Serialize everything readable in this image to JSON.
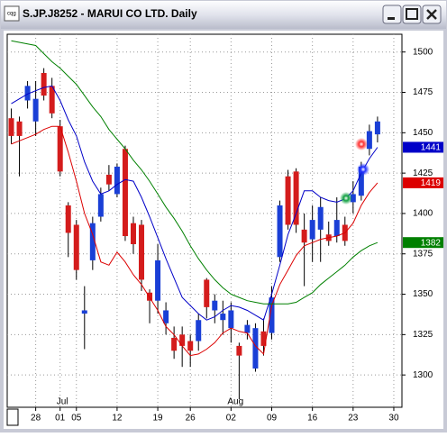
{
  "chart_data": {
    "type": "candlestick",
    "title": "S.JP.J8252 - MARUI CO LTD. Daily",
    "x": [
      0,
      1,
      2,
      3,
      4,
      5,
      6,
      7,
      8,
      9,
      10,
      11,
      12,
      13,
      14,
      15,
      16,
      17,
      18,
      19,
      20,
      21,
      22,
      23,
      24,
      25,
      26,
      27,
      28,
      29,
      30,
      31,
      32,
      33,
      34,
      35,
      36,
      37,
      38,
      39,
      40,
      41,
      42,
      43,
      44,
      45
    ],
    "open": [
      1459,
      1457,
      1470,
      1457,
      1487,
      1479,
      1454,
      1405,
      1393,
      1338,
      1371,
      1398,
      1424,
      1412,
      1440,
      1394,
      1393,
      1351,
      1346,
      1332,
      1323,
      1325,
      1321,
      1321,
      1359,
      1340,
      1334,
      1329,
      1318,
      1326,
      1304,
      1327,
      1326,
      1373,
      1423,
      1426,
      1390,
      1384,
      1390,
      1387,
      1386,
      1393,
      1407,
      1411,
      1440,
      1449
    ],
    "high": [
      1465,
      1460,
      1482,
      1482,
      1490,
      1484,
      1458,
      1407,
      1396,
      1355,
      1398,
      1416,
      1430,
      1431,
      1442,
      1398,
      1396,
      1353,
      1381,
      1345,
      1330,
      1330,
      1325,
      1338,
      1360,
      1350,
      1346,
      1345,
      1320,
      1334,
      1332,
      1335,
      1355,
      1408,
      1427,
      1428,
      1400,
      1405,
      1410,
      1395,
      1410,
      1398,
      1420,
      1432,
      1455,
      1460
    ],
    "low": [
      1443,
      1423,
      1465,
      1448,
      1470,
      1459,
      1423,
      1373,
      1359,
      1316,
      1365,
      1395,
      1414,
      1410,
      1383,
      1375,
      1352,
      1332,
      1338,
      1325,
      1310,
      1305,
      1305,
      1315,
      1335,
      1332,
      1325,
      1320,
      1285,
      1322,
      1302,
      1312,
      1322,
      1370,
      1390,
      1388,
      1355,
      1370,
      1370,
      1380,
      1382,
      1380,
      1400,
      1408,
      1436,
      1444
    ],
    "close": [
      1448,
      1448,
      1479,
      1471,
      1473,
      1462,
      1426,
      1388,
      1365,
      1340,
      1394,
      1412,
      1418,
      1429,
      1386,
      1381,
      1359,
      1346,
      1371,
      1340,
      1315,
      1318,
      1315,
      1334,
      1342,
      1346,
      1338,
      1340,
      1312,
      1331,
      1329,
      1318,
      1348,
      1405,
      1393,
      1393,
      1382,
      1396,
      1404,
      1383,
      1396,
      1383,
      1412,
      1429,
      1451,
      1457
    ],
    "up_color": "#1a3fd6",
    "down_color": "#d41c1c",
    "series": [
      {
        "color": "#0000c8",
        "values": [
          1468,
          1471,
          1474,
          1476,
          1478,
          1479,
          1470,
          1458,
          1448,
          1432,
          1420,
          1412,
          1414,
          1418,
          1421,
          1420,
          1410,
          1398,
          1385,
          1372,
          1360,
          1348,
          1343,
          1338,
          1334,
          1336,
          1340,
          1343,
          1342,
          1340,
          1337,
          1334,
          1350,
          1368,
          1387,
          1400,
          1414,
          1414,
          1410,
          1408,
          1407,
          1409,
          1414,
          1425,
          1434,
          1441
        ]
      },
      {
        "color": "#dc0000",
        "values": [
          1443,
          1445,
          1447,
          1449,
          1452,
          1454,
          1454,
          1438,
          1420,
          1400,
          1387,
          1370,
          1368,
          1376,
          1370,
          1362,
          1356,
          1348,
          1340,
          1330,
          1325,
          1318,
          1312,
          1313,
          1316,
          1320,
          1326,
          1329,
          1327,
          1326,
          1318,
          1313,
          1343,
          1356,
          1365,
          1374,
          1380,
          1382,
          1384,
          1385,
          1386,
          1388,
          1394,
          1405,
          1413,
          1419
        ]
      },
      {
        "color": "#008000",
        "values": [
          1507,
          1506,
          1505,
          1504,
          1499,
          1494,
          1490,
          1485,
          1480,
          1473,
          1466,
          1460,
          1452,
          1446,
          1440,
          1433,
          1427,
          1420,
          1412,
          1404,
          1397,
          1389,
          1380,
          1372,
          1365,
          1359,
          1354,
          1350,
          1348,
          1346,
          1345,
          1344,
          1344,
          1344,
          1344,
          1345,
          1348,
          1351,
          1356,
          1360,
          1364,
          1368,
          1373,
          1377,
          1380,
          1382
        ]
      }
    ],
    "xlim": [
      -0.5,
      48
    ],
    "xticks": [
      {
        "value": 3,
        "label": "28"
      },
      {
        "value": 6,
        "label": "01"
      },
      {
        "value": 8,
        "label": "05"
      },
      {
        "value": 13,
        "label": "12"
      },
      {
        "value": 18,
        "label": "19"
      },
      {
        "value": 22,
        "label": "26"
      },
      {
        "value": 27,
        "label": "02"
      },
      {
        "value": 32,
        "label": "09"
      },
      {
        "value": 37,
        "label": "16"
      },
      {
        "value": 42,
        "label": "23"
      },
      {
        "value": 47,
        "label": "30"
      }
    ],
    "month_labels": [
      {
        "value": 6,
        "label": "Jul"
      },
      {
        "value": 27,
        "label": "Aug"
      }
    ],
    "ylim": [
      1280,
      1511
    ],
    "yticks": [
      1300,
      1325,
      1350,
      1375,
      1400,
      1425,
      1450,
      1475,
      1500
    ],
    "grid": true
  }
}
